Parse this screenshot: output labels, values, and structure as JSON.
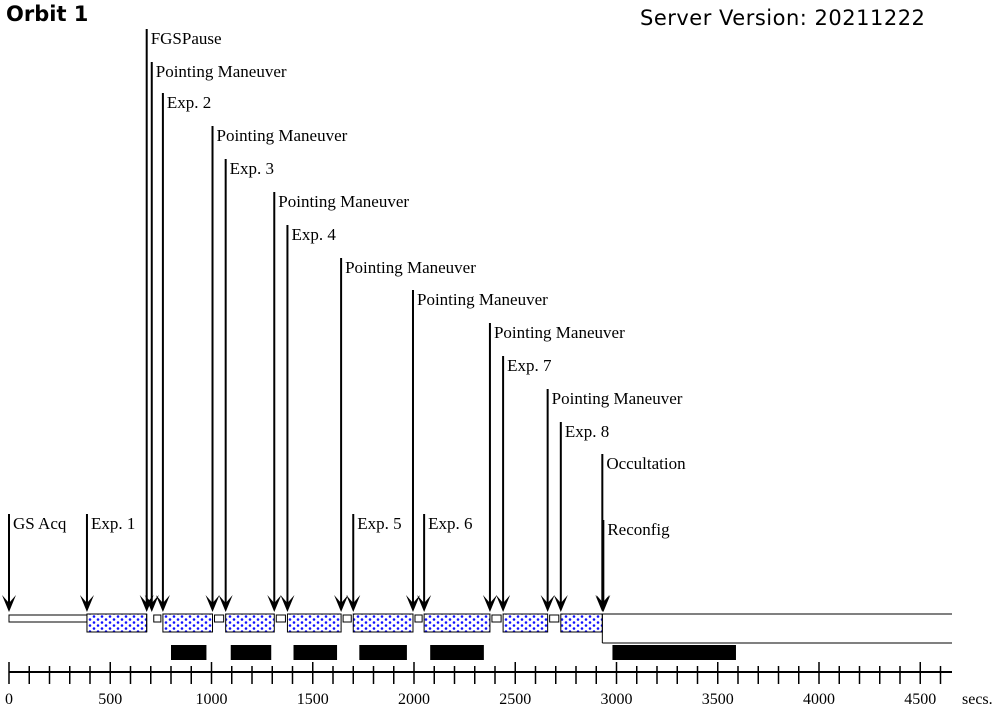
{
  "header": {
    "title": "Orbit 1",
    "server_label": "Server Version:",
    "server_version": "20211222"
  },
  "chart_data": {
    "type": "timeline",
    "xlabel": "secs.",
    "xlim": [
      0,
      4650
    ],
    "ticks": [
      0,
      500,
      1000,
      1500,
      2000,
      2500,
      3000,
      3500,
      4000,
      4500
    ],
    "events": [
      {
        "label": "GS Acq",
        "t": 0
      },
      {
        "label": "Exp. 1",
        "t": 385
      },
      {
        "label": "FGSPause",
        "t": 680
      },
      {
        "label": "Pointing Maneuver",
        "t": 705
      },
      {
        "label": "Exp. 2",
        "t": 760
      },
      {
        "label": "Pointing Maneuver",
        "t": 1005
      },
      {
        "label": "Exp. 3",
        "t": 1070
      },
      {
        "label": "Pointing Maneuver",
        "t": 1310
      },
      {
        "label": "Exp. 4",
        "t": 1375
      },
      {
        "label": "Pointing Maneuver",
        "t": 1640
      },
      {
        "label": "Exp. 5",
        "t": 1700
      },
      {
        "label": "Pointing Maneuver",
        "t": 1995
      },
      {
        "label": "Exp. 6",
        "t": 2050
      },
      {
        "label": "Pointing Maneuver",
        "t": 2375
      },
      {
        "label": "Exp. 7",
        "t": 2440
      },
      {
        "label": "Pointing Maneuver",
        "t": 2660
      },
      {
        "label": "Exp. 8",
        "t": 2725
      },
      {
        "label": "Occultation",
        "t": 2930
      },
      {
        "label": "Reconfig",
        "t": 2935
      }
    ],
    "segments": [
      {
        "kind": "acq",
        "start": 0,
        "end": 385
      },
      {
        "kind": "exposure",
        "start": 385,
        "end": 680
      },
      {
        "kind": "pause",
        "start": 680,
        "end": 705
      },
      {
        "kind": "maneuver",
        "start": 705,
        "end": 760
      },
      {
        "kind": "exposure",
        "start": 760,
        "end": 1005
      },
      {
        "kind": "maneuver",
        "start": 1005,
        "end": 1070
      },
      {
        "kind": "exposure",
        "start": 1070,
        "end": 1310
      },
      {
        "kind": "maneuver",
        "start": 1310,
        "end": 1375
      },
      {
        "kind": "exposure",
        "start": 1375,
        "end": 1640
      },
      {
        "kind": "maneuver",
        "start": 1640,
        "end": 1700
      },
      {
        "kind": "exposure",
        "start": 1700,
        "end": 1995
      },
      {
        "kind": "maneuver",
        "start": 1995,
        "end": 2050
      },
      {
        "kind": "exposure",
        "start": 2050,
        "end": 2375
      },
      {
        "kind": "maneuver",
        "start": 2375,
        "end": 2440
      },
      {
        "kind": "exposure",
        "start": 2440,
        "end": 2660
      },
      {
        "kind": "maneuver",
        "start": 2660,
        "end": 2725
      },
      {
        "kind": "exposure",
        "start": 2725,
        "end": 2930
      }
    ],
    "occultation": {
      "start": 2930,
      "end": 4650
    },
    "black_bars": [
      {
        "start": 800,
        "end": 975
      },
      {
        "start": 1095,
        "end": 1295
      },
      {
        "start": 1405,
        "end": 1620
      },
      {
        "start": 1730,
        "end": 1965
      },
      {
        "start": 2080,
        "end": 2345
      },
      {
        "start": 2980,
        "end": 3590
      }
    ]
  }
}
